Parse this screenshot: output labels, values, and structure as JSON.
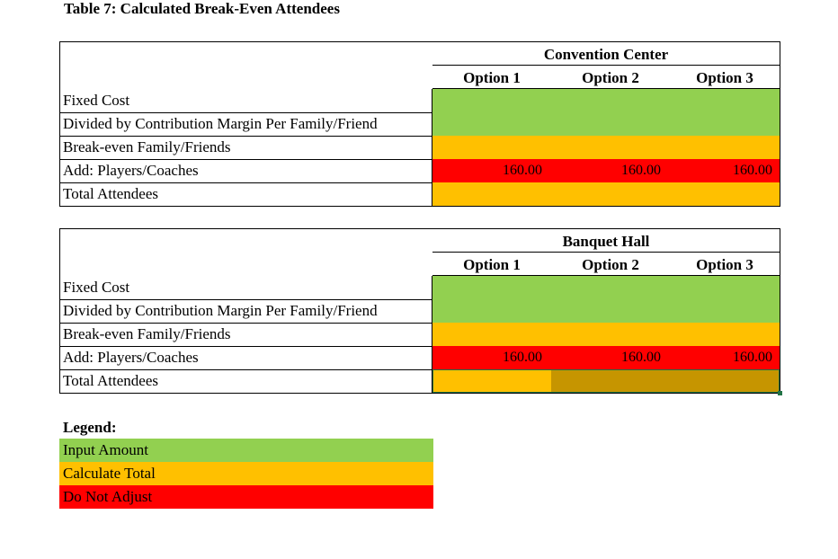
{
  "title": "Table 7: Calculated Break-Even Attendees",
  "tables": [
    {
      "group": "Convention Center",
      "options": [
        "Option 1",
        "Option 2",
        "Option 3"
      ],
      "rows": {
        "fixed_cost": "Fixed Cost",
        "divided": "Divided by Contribution Margin Per Family/Friend",
        "breakeven": "Break-even Family/Friends",
        "add_players": "Add: Players/Coaches",
        "total": "Total Attendees"
      },
      "players_values": [
        "160.00",
        "160.00",
        "160.00"
      ]
    },
    {
      "group": "Banquet Hall",
      "options": [
        "Option 1",
        "Option 2",
        "Option 3"
      ],
      "rows": {
        "fixed_cost": "Fixed Cost",
        "divided": "Divided by Contribution Margin Per Family/Friend",
        "breakeven": "Break-even Family/Friends",
        "add_players": "Add: Players/Coaches",
        "total": "Total Attendees"
      },
      "players_values": [
        "160.00",
        "160.00",
        "160.00"
      ]
    }
  ],
  "legend": {
    "title": "Legend:",
    "items": [
      {
        "label": "Input Amount",
        "color": "#92d050"
      },
      {
        "label": "Calculate Total",
        "color": "#ffc000"
      },
      {
        "label": "Do Not Adjust",
        "color": "#ff0000"
      }
    ]
  },
  "colors": {
    "input": "#92d050",
    "calculate": "#ffc000",
    "fixed": "#ff0000",
    "selection": "#217346"
  }
}
